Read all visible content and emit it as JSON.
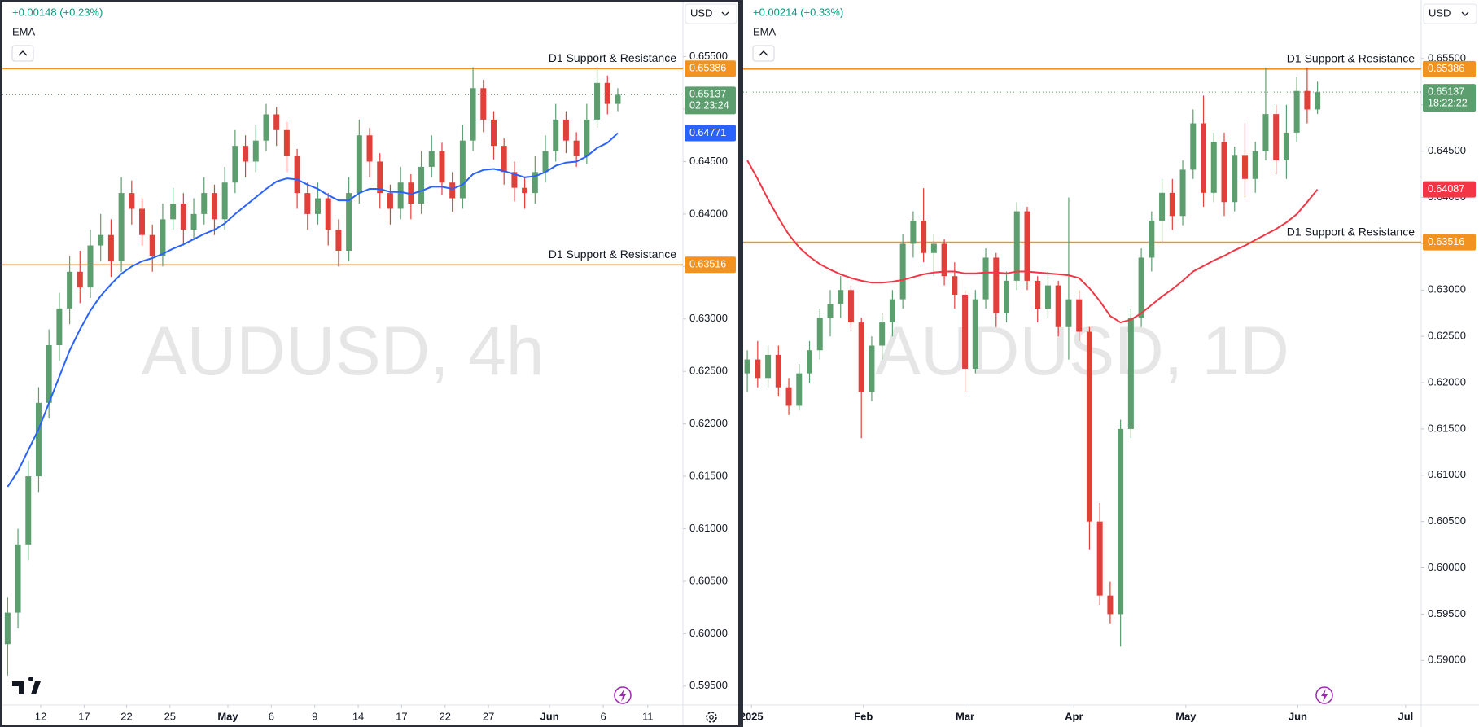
{
  "chart_data": [
    {
      "type": "candlestick",
      "watermark": "AUDUSD, 4h",
      "change": "+0.00148 (+0.23%)",
      "indicator": "EMA",
      "currency": "USD",
      "up_color": "#5d9e6f",
      "down_color": "#e0403a",
      "ema_color": "#2962ff",
      "level_color": "#f29320",
      "last_color": "#5d9e6f",
      "last_price": 0.65137,
      "countdown": "02:23:24",
      "levels": [
        {
          "label": "D1 Support & Resistance",
          "value": 0.65386
        },
        {
          "label": "D1 Support & Resistance",
          "value": 0.63516
        }
      ],
      "ylim": [
        0.5932,
        0.6604
      ],
      "yticks": [
        {
          "value": 0.595,
          "label": "0.59500"
        },
        {
          "value": 0.6,
          "label": "0.60000"
        },
        {
          "value": 0.605,
          "label": "0.60500"
        },
        {
          "value": 0.61,
          "label": "0.61000"
        },
        {
          "value": 0.615,
          "label": "0.61500"
        },
        {
          "value": 0.62,
          "label": "0.62000"
        },
        {
          "value": 0.625,
          "label": "0.62500"
        },
        {
          "value": 0.63,
          "label": "0.63000"
        },
        {
          "value": 0.635,
          "label": "0.63500"
        },
        {
          "value": 0.64,
          "label": "0.64000"
        },
        {
          "value": 0.645,
          "label": "0.64500"
        },
        {
          "value": 0.65,
          "label": "0.65000"
        },
        {
          "value": 0.655,
          "label": "0.65500"
        }
      ],
      "xlim": [
        -0.5,
        65.3
      ],
      "xticks": [
        {
          "value": 3.2,
          "label": "12"
        },
        {
          "value": 7.4,
          "label": "17"
        },
        {
          "value": 11.5,
          "label": "22"
        },
        {
          "value": 15.7,
          "label": "25"
        },
        {
          "value": 21.3,
          "label": "May"
        },
        {
          "value": 25.5,
          "label": "6"
        },
        {
          "value": 29.7,
          "label": "9"
        },
        {
          "value": 33.9,
          "label": "14"
        },
        {
          "value": 38.1,
          "label": "17"
        },
        {
          "value": 42.3,
          "label": "22"
        },
        {
          "value": 46.5,
          "label": "27"
        },
        {
          "value": 52.4,
          "label": "Jun"
        },
        {
          "value": 57.6,
          "label": "6"
        },
        {
          "value": 61.9,
          "label": "11"
        }
      ],
      "candles": [
        [
          0.599,
          0.6035,
          0.596,
          0.602
        ],
        [
          0.602,
          0.61,
          0.6005,
          0.6085
        ],
        [
          0.6085,
          0.6165,
          0.607,
          0.615
        ],
        [
          0.615,
          0.6235,
          0.6135,
          0.622
        ],
        [
          0.622,
          0.629,
          0.6205,
          0.6275
        ],
        [
          0.6275,
          0.6325,
          0.626,
          0.631
        ],
        [
          0.631,
          0.636,
          0.6295,
          0.6345
        ],
        [
          0.6345,
          0.6365,
          0.6315,
          0.633
        ],
        [
          0.633,
          0.6385,
          0.632,
          0.637
        ],
        [
          0.637,
          0.64,
          0.6355,
          0.638
        ],
        [
          0.638,
          0.6395,
          0.634,
          0.6355
        ],
        [
          0.6355,
          0.6435,
          0.6345,
          0.642
        ],
        [
          0.642,
          0.6432,
          0.639,
          0.6405
        ],
        [
          0.6405,
          0.6415,
          0.637,
          0.638
        ],
        [
          0.638,
          0.639,
          0.6345,
          0.636
        ],
        [
          0.636,
          0.641,
          0.635,
          0.6395
        ],
        [
          0.6395,
          0.6425,
          0.6385,
          0.641
        ],
        [
          0.641,
          0.642,
          0.637,
          0.6385
        ],
        [
          0.6385,
          0.6415,
          0.6375,
          0.64
        ],
        [
          0.64,
          0.6435,
          0.639,
          0.642
        ],
        [
          0.642,
          0.6428,
          0.638,
          0.6395
        ],
        [
          0.6395,
          0.6445,
          0.6385,
          0.643
        ],
        [
          0.643,
          0.648,
          0.642,
          0.6465
        ],
        [
          0.6465,
          0.6475,
          0.6435,
          0.645
        ],
        [
          0.645,
          0.6485,
          0.644,
          0.647
        ],
        [
          0.647,
          0.6505,
          0.646,
          0.6495
        ],
        [
          0.6495,
          0.6502,
          0.6465,
          0.648
        ],
        [
          0.648,
          0.6488,
          0.644,
          0.6455
        ],
        [
          0.6455,
          0.6462,
          0.6405,
          0.642
        ],
        [
          0.642,
          0.643,
          0.6385,
          0.64
        ],
        [
          0.64,
          0.643,
          0.639,
          0.6415
        ],
        [
          0.6415,
          0.642,
          0.637,
          0.6385
        ],
        [
          0.6385,
          0.6395,
          0.635,
          0.6365
        ],
        [
          0.6365,
          0.6435,
          0.6355,
          0.642
        ],
        [
          0.642,
          0.649,
          0.641,
          0.6475
        ],
        [
          0.6475,
          0.6482,
          0.6435,
          0.645
        ],
        [
          0.645,
          0.6458,
          0.6405,
          0.642
        ],
        [
          0.642,
          0.6428,
          0.639,
          0.6405
        ],
        [
          0.6405,
          0.6445,
          0.6395,
          0.643
        ],
        [
          0.643,
          0.6438,
          0.6395,
          0.641
        ],
        [
          0.641,
          0.646,
          0.64,
          0.6445
        ],
        [
          0.6445,
          0.6475,
          0.6435,
          0.646
        ],
        [
          0.646,
          0.6468,
          0.6418,
          0.643
        ],
        [
          0.643,
          0.644,
          0.6402,
          0.6415
        ],
        [
          0.6415,
          0.6485,
          0.6405,
          0.647
        ],
        [
          0.647,
          0.654,
          0.646,
          0.652
        ],
        [
          0.652,
          0.6528,
          0.6478,
          0.649
        ],
        [
          0.649,
          0.6498,
          0.6452,
          0.6465
        ],
        [
          0.6465,
          0.6472,
          0.6428,
          0.644
        ],
        [
          0.644,
          0.645,
          0.6412,
          0.6425
        ],
        [
          0.6425,
          0.6435,
          0.6405,
          0.642
        ],
        [
          0.642,
          0.6455,
          0.641,
          0.644
        ],
        [
          0.644,
          0.6475,
          0.643,
          0.646
        ],
        [
          0.646,
          0.6505,
          0.645,
          0.649
        ],
        [
          0.649,
          0.6498,
          0.6458,
          0.647
        ],
        [
          0.647,
          0.6478,
          0.6445,
          0.6455
        ],
        [
          0.6455,
          0.6505,
          0.6448,
          0.649
        ],
        [
          0.649,
          0.654,
          0.6482,
          0.6525
        ],
        [
          0.6525,
          0.6532,
          0.6495,
          0.6505
        ],
        [
          0.6505,
          0.652,
          0.6498,
          0.65137
        ]
      ],
      "ema": [
        0.614,
        0.6155,
        0.6175,
        0.6195,
        0.622,
        0.6245,
        0.627,
        0.629,
        0.6308,
        0.6322,
        0.6333,
        0.6343,
        0.635,
        0.6355,
        0.6358,
        0.6362,
        0.6367,
        0.6371,
        0.6376,
        0.6381,
        0.6385,
        0.6391,
        0.64,
        0.6408,
        0.6416,
        0.6424,
        0.6431,
        0.6434,
        0.6433,
        0.6428,
        0.6424,
        0.6418,
        0.6413,
        0.6413,
        0.642,
        0.6424,
        0.6424,
        0.6421,
        0.6421,
        0.6419,
        0.6422,
        0.6426,
        0.6426,
        0.6424,
        0.6428,
        0.6438,
        0.6442,
        0.6443,
        0.6441,
        0.6438,
        0.6435,
        0.6436,
        0.644,
        0.6446,
        0.6449,
        0.645,
        0.6455,
        0.6463,
        0.6468,
        0.64771
      ]
    },
    {
      "type": "candlestick",
      "watermark": "AUDUSD, 1D",
      "change": "+0.00214 (+0.33%)",
      "indicator": "EMA",
      "currency": "USD",
      "up_color": "#5d9e6f",
      "down_color": "#e0403a",
      "ema_color": "#f23645",
      "level_color": "#f29320",
      "last_color": "#5d9e6f",
      "last_price": 0.65137,
      "countdown": "18:22:22",
      "levels": [
        {
          "label": "D1 Support & Resistance",
          "value": 0.65386
        },
        {
          "label": "D1 Support & Resistance",
          "value": 0.63516
        }
      ],
      "ylim": [
        0.58519,
        0.66132
      ],
      "yticks": [
        {
          "value": 0.59,
          "label": "0.59000"
        },
        {
          "value": 0.595,
          "label": "0.59500"
        },
        {
          "value": 0.6,
          "label": "0.60000"
        },
        {
          "value": 0.605,
          "label": "0.60500"
        },
        {
          "value": 0.61,
          "label": "0.61000"
        },
        {
          "value": 0.615,
          "label": "0.61500"
        },
        {
          "value": 0.62,
          "label": "0.62000"
        },
        {
          "value": 0.625,
          "label": "0.62500"
        },
        {
          "value": 0.63,
          "label": "0.63000"
        },
        {
          "value": 0.635,
          "label": "0.63500"
        },
        {
          "value": 0.64,
          "label": "0.64000"
        },
        {
          "value": 0.645,
          "label": "0.64500"
        },
        {
          "value": 0.65,
          "label": "0.65000"
        },
        {
          "value": 0.655,
          "label": "0.65500"
        }
      ],
      "xlim": [
        -0.4,
        65.0
      ],
      "xticks": [
        {
          "value": 0.4,
          "label": "2025"
        },
        {
          "value": 11.2,
          "label": "Feb"
        },
        {
          "value": 21.0,
          "label": "Mar"
        },
        {
          "value": 31.5,
          "label": "Apr"
        },
        {
          "value": 42.3,
          "label": "May"
        },
        {
          "value": 53.1,
          "label": "Jun"
        },
        {
          "value": 63.5,
          "label": "Jul"
        }
      ],
      "candles": [
        [
          0.621,
          0.6235,
          0.619,
          0.6225
        ],
        [
          0.6225,
          0.6245,
          0.6195,
          0.6205
        ],
        [
          0.6205,
          0.624,
          0.6195,
          0.623
        ],
        [
          0.623,
          0.624,
          0.6185,
          0.6195
        ],
        [
          0.6195,
          0.6205,
          0.6165,
          0.6175
        ],
        [
          0.6175,
          0.622,
          0.617,
          0.621
        ],
        [
          0.621,
          0.6245,
          0.62,
          0.6235
        ],
        [
          0.6235,
          0.628,
          0.6225,
          0.627
        ],
        [
          0.627,
          0.63,
          0.625,
          0.6285
        ],
        [
          0.6285,
          0.6315,
          0.627,
          0.63
        ],
        [
          0.63,
          0.6305,
          0.6255,
          0.6265
        ],
        [
          0.6265,
          0.627,
          0.614,
          0.619
        ],
        [
          0.619,
          0.625,
          0.618,
          0.624
        ],
        [
          0.624,
          0.6275,
          0.6225,
          0.6265
        ],
        [
          0.6265,
          0.63,
          0.625,
          0.629
        ],
        [
          0.629,
          0.636,
          0.628,
          0.635
        ],
        [
          0.635,
          0.6385,
          0.6335,
          0.6375
        ],
        [
          0.6375,
          0.641,
          0.633,
          0.634
        ],
        [
          0.634,
          0.636,
          0.6315,
          0.635
        ],
        [
          0.635,
          0.6355,
          0.6305,
          0.6315
        ],
        [
          0.6315,
          0.633,
          0.628,
          0.6295
        ],
        [
          0.6295,
          0.63,
          0.619,
          0.6215
        ],
        [
          0.6215,
          0.63,
          0.621,
          0.629
        ],
        [
          0.629,
          0.6345,
          0.628,
          0.6335
        ],
        [
          0.6335,
          0.634,
          0.626,
          0.6275
        ],
        [
          0.6275,
          0.632,
          0.6265,
          0.631
        ],
        [
          0.631,
          0.6395,
          0.63,
          0.6385
        ],
        [
          0.6385,
          0.639,
          0.63,
          0.631
        ],
        [
          0.631,
          0.6315,
          0.6265,
          0.628
        ],
        [
          0.628,
          0.632,
          0.627,
          0.6305
        ],
        [
          0.6305,
          0.631,
          0.625,
          0.626
        ],
        [
          0.626,
          0.64,
          0.6225,
          0.629
        ],
        [
          0.629,
          0.63,
          0.6245,
          0.6255
        ],
        [
          0.6255,
          0.626,
          0.602,
          0.605
        ],
        [
          0.605,
          0.607,
          0.596,
          0.597
        ],
        [
          0.597,
          0.5985,
          0.594,
          0.595
        ],
        [
          0.595,
          0.616,
          0.5915,
          0.615
        ],
        [
          0.615,
          0.628,
          0.614,
          0.627
        ],
        [
          0.627,
          0.6345,
          0.626,
          0.6335
        ],
        [
          0.6335,
          0.6385,
          0.632,
          0.6375
        ],
        [
          0.6375,
          0.642,
          0.635,
          0.6405
        ],
        [
          0.6405,
          0.642,
          0.6365,
          0.638
        ],
        [
          0.638,
          0.644,
          0.637,
          0.643
        ],
        [
          0.643,
          0.6495,
          0.642,
          0.648
        ],
        [
          0.648,
          0.651,
          0.639,
          0.6405
        ],
        [
          0.6405,
          0.647,
          0.6395,
          0.646
        ],
        [
          0.646,
          0.647,
          0.638,
          0.6395
        ],
        [
          0.6395,
          0.6455,
          0.6385,
          0.6445
        ],
        [
          0.6445,
          0.648,
          0.64,
          0.642
        ],
        [
          0.642,
          0.646,
          0.6405,
          0.645
        ],
        [
          0.645,
          0.654,
          0.644,
          0.649
        ],
        [
          0.649,
          0.65,
          0.6425,
          0.644
        ],
        [
          0.644,
          0.65,
          0.642,
          0.647
        ],
        [
          0.647,
          0.653,
          0.646,
          0.6515
        ],
        [
          0.6515,
          0.654,
          0.648,
          0.6495
        ],
        [
          0.6495,
          0.6525,
          0.649,
          0.65137
        ]
      ],
      "ema": [
        0.644,
        0.642,
        0.6398,
        0.6378,
        0.636,
        0.6346,
        0.6336,
        0.6328,
        0.6322,
        0.6317,
        0.6313,
        0.631,
        0.6308,
        0.6308,
        0.6309,
        0.6311,
        0.6314,
        0.6317,
        0.6319,
        0.632,
        0.632,
        0.6318,
        0.6318,
        0.6319,
        0.6319,
        0.6318,
        0.632,
        0.632,
        0.6319,
        0.6318,
        0.6317,
        0.6316,
        0.6313,
        0.6302,
        0.6288,
        0.6272,
        0.6265,
        0.6268,
        0.6275,
        0.6284,
        0.6293,
        0.6301,
        0.631,
        0.632,
        0.6326,
        0.6332,
        0.6337,
        0.6343,
        0.6348,
        0.6354,
        0.636,
        0.6366,
        0.6373,
        0.6382,
        0.6395,
        0.64087
      ]
    }
  ]
}
